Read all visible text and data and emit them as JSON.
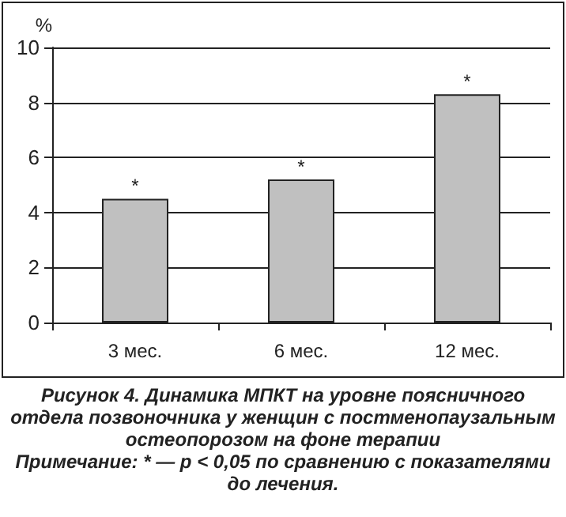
{
  "chart_data": {
    "type": "bar",
    "title": "Рисунок 4. Динамика МПКТ на уровне поясничного отдела позвоночника у женщин с постменопаузальным остеопорозом на фоне терапии",
    "ylabel": "%",
    "categories": [
      "3 мес.",
      "6 мес.",
      "12 мес."
    ],
    "values": [
      4.5,
      5.2,
      8.3
    ],
    "color": "#c0c0c0",
    "ylim": [
      0,
      10
    ],
    "yticks": [
      0,
      2,
      4,
      6,
      8,
      10
    ],
    "grid": "y",
    "annotations": [
      {
        "text": "*",
        "x": "3 мес.",
        "y": 4.5
      },
      {
        "text": "*",
        "x": "6 мес.",
        "y": 5.2
      },
      {
        "text": "*",
        "x": "12 мес.",
        "y": 8.3
      },
      "Примечание: * — p < 0,05 по сравнению с показателями до лечения."
    ]
  }
}
